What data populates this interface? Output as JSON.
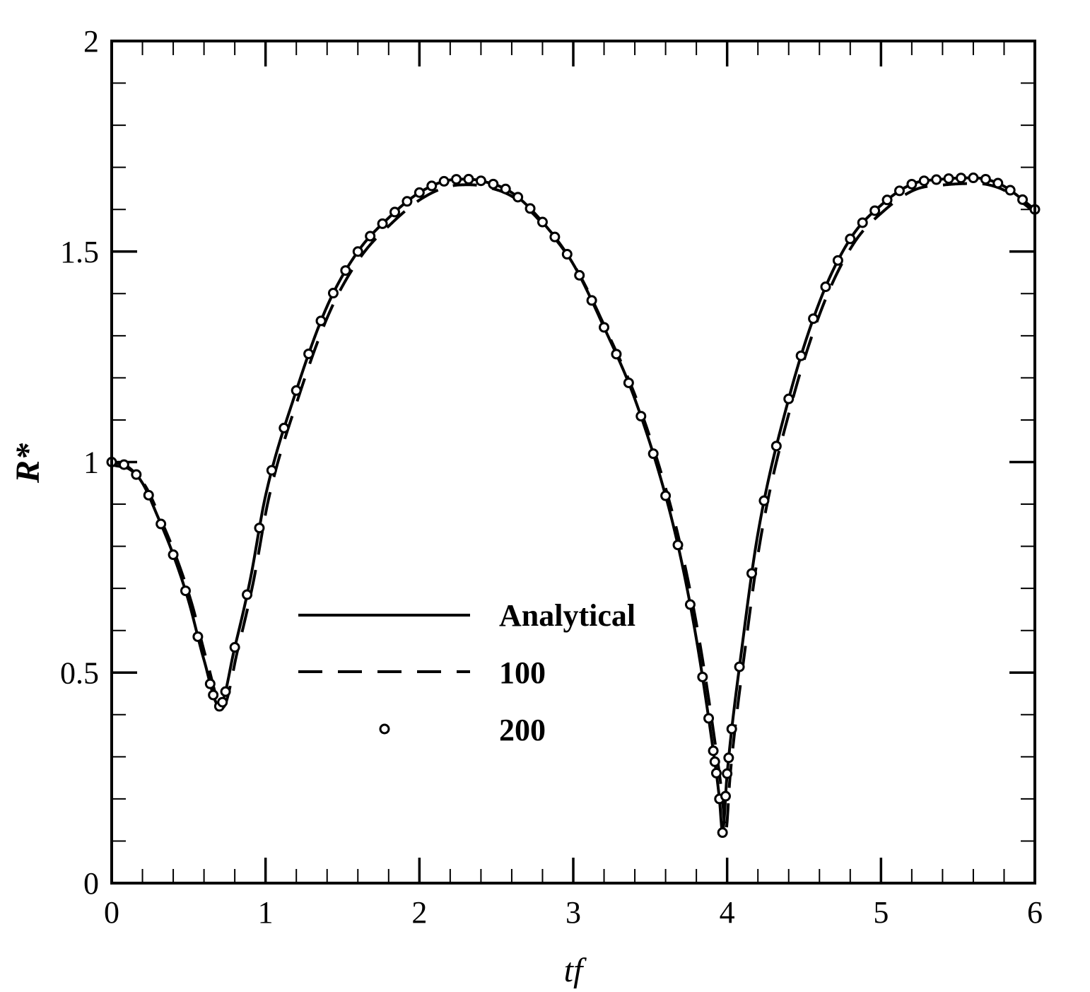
{
  "chart_data": {
    "type": "line",
    "xlabel": "tf",
    "ylabel": "R*",
    "xlim": [
      0,
      6
    ],
    "ylim": [
      0,
      2
    ],
    "x_ticks": [
      "0",
      "1",
      "2",
      "3",
      "4",
      "5",
      "6"
    ],
    "y_ticks": [
      "0",
      "0.5",
      "1",
      "1.5",
      "2"
    ],
    "grid": false,
    "legend_position": "center",
    "series": [
      {
        "name": "Analytical",
        "style": "solid"
      },
      {
        "name": "100",
        "style": "dashed"
      },
      {
        "name": "200",
        "style": "markers"
      }
    ],
    "x": [
      0,
      0.1,
      0.2,
      0.3,
      0.4,
      0.5,
      0.6,
      0.7,
      0.8,
      0.9,
      1.0,
      1.2,
      1.4,
      1.6,
      1.8,
      2.0,
      2.2,
      2.3,
      2.4,
      2.6,
      2.8,
      3.0,
      3.2,
      3.4,
      3.6,
      3.7,
      3.8,
      3.9,
      3.95,
      3.97,
      4.0,
      4.1,
      4.2,
      4.4,
      4.6,
      4.8,
      5.0,
      5.2,
      5.4,
      5.6,
      5.7,
      5.8,
      6.0
    ],
    "values": [
      1.0,
      0.99,
      0.95,
      0.87,
      0.78,
      0.67,
      0.53,
      0.42,
      0.56,
      0.72,
      0.92,
      1.17,
      1.37,
      1.5,
      1.58,
      1.64,
      1.67,
      1.672,
      1.668,
      1.64,
      1.57,
      1.47,
      1.32,
      1.15,
      0.92,
      0.77,
      0.58,
      0.34,
      0.2,
      0.12,
      0.26,
      0.57,
      0.83,
      1.15,
      1.38,
      1.53,
      1.61,
      1.66,
      1.672,
      1.675,
      1.67,
      1.655,
      1.6
    ]
  }
}
